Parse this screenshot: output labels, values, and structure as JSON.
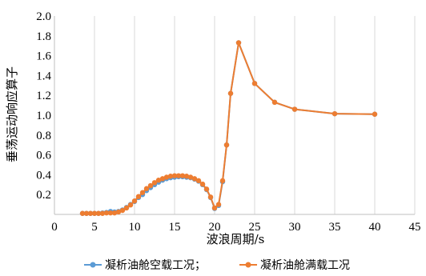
{
  "chart_data": {
    "type": "line",
    "title": "",
    "xlabel": "波浪周期/s",
    "ylabel": "垂荡运动响应算子",
    "xlim": [
      0,
      45
    ],
    "ylim": [
      0,
      2.0
    ],
    "x_ticks": [
      "0",
      "5",
      "10",
      "15",
      "20",
      "25",
      "30",
      "35",
      "40",
      "45"
    ],
    "y_ticks": [
      "0.2",
      "0.4",
      "0.6",
      "0.8",
      "1.0",
      "1.2",
      "1.4",
      "1.6",
      "1.8",
      "2.0"
    ],
    "grid": "vertical",
    "legend_position": "bottom",
    "series": [
      {
        "name": "凝析油舱空载工况；",
        "color": "#5b9bd5",
        "x": [
          3.5,
          4,
          4.5,
          5,
          5.5,
          6,
          6.5,
          7,
          7.5,
          8,
          8.5,
          9,
          9.5,
          10,
          10.5,
          11,
          11.5,
          12,
          12.5,
          13,
          13.5,
          14,
          14.5,
          15,
          15.5,
          16,
          16.5,
          17,
          17.5,
          18,
          18.5,
          19,
          19.5,
          20,
          20.5,
          21,
          21.5,
          22,
          23,
          25,
          27.5,
          30,
          35,
          40
        ],
        "y": [
          0.01,
          0.01,
          0.01,
          0.01,
          0.01,
          0.015,
          0.02,
          0.03,
          0.025,
          0.03,
          0.045,
          0.07,
          0.1,
          0.13,
          0.17,
          0.2,
          0.24,
          0.27,
          0.3,
          0.325,
          0.345,
          0.36,
          0.37,
          0.375,
          0.38,
          0.38,
          0.375,
          0.37,
          0.355,
          0.335,
          0.3,
          0.25,
          0.17,
          0.06,
          0.09,
          0.33,
          0.7,
          1.22,
          1.73,
          1.32,
          1.13,
          1.06,
          1.015,
          1.01
        ]
      },
      {
        "name": "凝析油舱满载工况",
        "color": "#ed7d31",
        "x": [
          3.5,
          4,
          4.5,
          5,
          5.5,
          6,
          6.5,
          7,
          7.5,
          8,
          8.5,
          9,
          9.5,
          10,
          10.5,
          11,
          11.5,
          12,
          12.5,
          13,
          13.5,
          14,
          14.5,
          15,
          15.5,
          16,
          16.5,
          17,
          17.5,
          18,
          18.5,
          19,
          19.5,
          20,
          20.5,
          21,
          21.5,
          22,
          23,
          25,
          27.5,
          30,
          35,
          40
        ],
        "y": [
          0.01,
          0.01,
          0.01,
          0.01,
          0.01,
          0.01,
          0.015,
          0.015,
          0.015,
          0.025,
          0.04,
          0.065,
          0.095,
          0.135,
          0.18,
          0.22,
          0.26,
          0.29,
          0.32,
          0.345,
          0.36,
          0.375,
          0.385,
          0.39,
          0.39,
          0.39,
          0.385,
          0.375,
          0.36,
          0.34,
          0.305,
          0.255,
          0.175,
          0.065,
          0.1,
          0.34,
          0.7,
          1.22,
          1.73,
          1.32,
          1.13,
          1.06,
          1.015,
          1.01
        ]
      }
    ]
  }
}
